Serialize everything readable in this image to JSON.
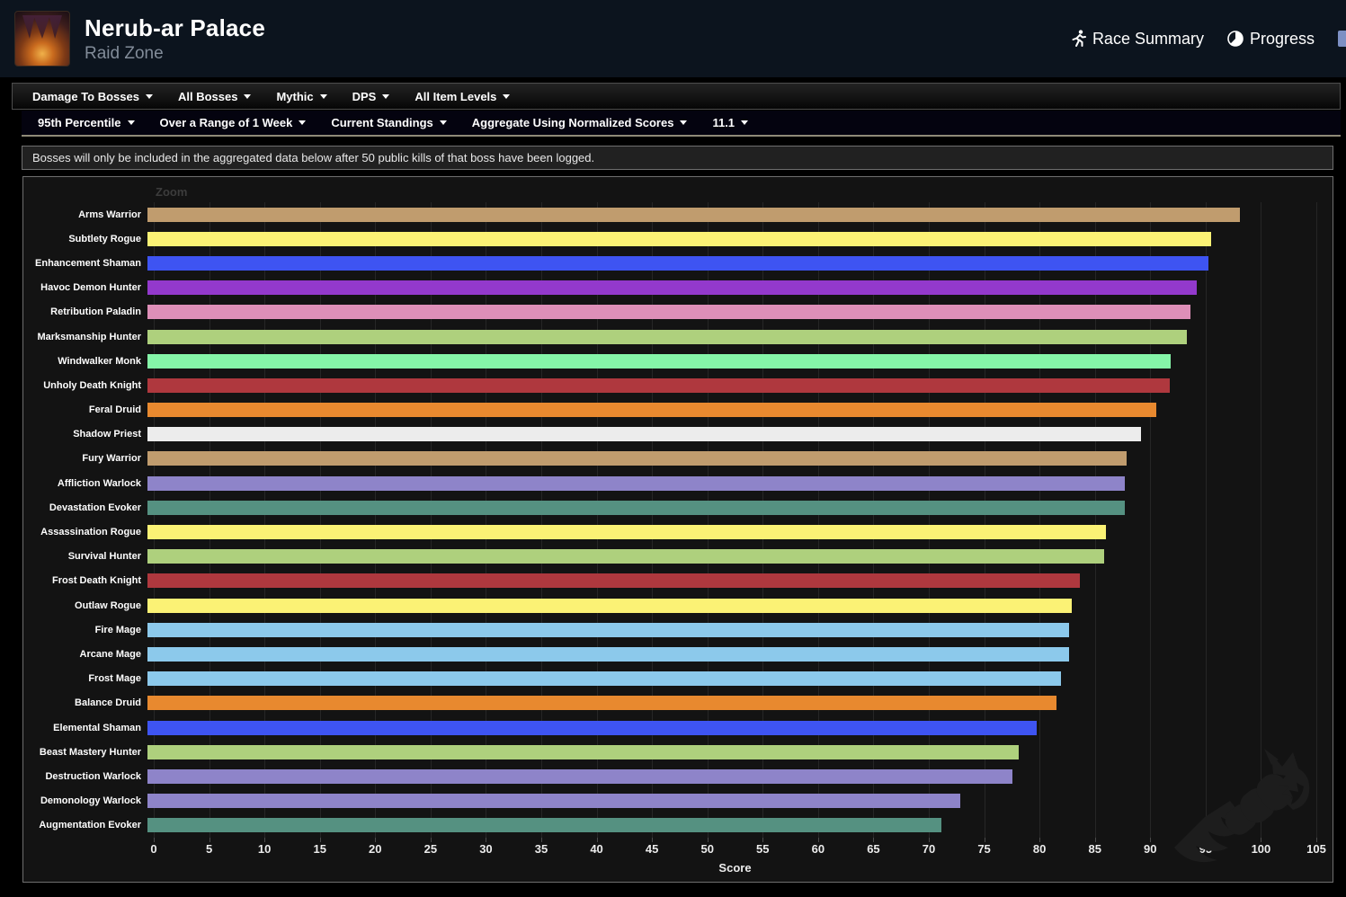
{
  "header": {
    "title": "Nerub-ar Palace",
    "subtitle": "Raid Zone",
    "links": [
      {
        "label": "Race Summary",
        "icon": "runner-icon"
      },
      {
        "label": "Progress",
        "icon": "pie-chart-icon"
      }
    ]
  },
  "filter_bar_primary": {
    "items": [
      "Damage To Bosses",
      "All Bosses",
      "Mythic",
      "DPS",
      "All Item Levels"
    ]
  },
  "filter_bar_secondary": {
    "items": [
      "95th Percentile",
      "Over a Range of 1 Week",
      "Current Standings",
      "Aggregate Using Normalized Scores",
      "11.1"
    ]
  },
  "notice": "Bosses will only be included in the aggregated data below after 50 public kills of that boss have been logged.",
  "chart_data": {
    "type": "bar",
    "orientation": "horizontal",
    "title": "",
    "zoom_label": "Zoom",
    "xlabel": "Score",
    "xlim": [
      0,
      105
    ],
    "xticks": [
      0,
      5,
      10,
      15,
      20,
      25,
      30,
      35,
      40,
      45,
      50,
      55,
      60,
      65,
      70,
      75,
      80,
      85,
      90,
      95,
      100,
      105
    ],
    "grid": true,
    "legend": false,
    "categories": [
      "Arms Warrior",
      "Subtlety Rogue",
      "Enhancement Shaman",
      "Havoc Demon Hunter",
      "Retribution Paladin",
      "Marksmanship Hunter",
      "Windwalker Monk",
      "Unholy Death Knight",
      "Feral Druid",
      "Shadow Priest",
      "Fury Warrior",
      "Affliction Warlock",
      "Devastation Evoker",
      "Assassination Rogue",
      "Survival Hunter",
      "Frost Death Knight",
      "Outlaw Rogue",
      "Fire Mage",
      "Arcane Mage",
      "Frost Mage",
      "Balance Druid",
      "Elemental Shaman",
      "Beast Mastery Hunter",
      "Destruction Warlock",
      "Demonology Warlock",
      "Augmentation Evoker"
    ],
    "values": [
      98.7,
      96.1,
      95.8,
      94.8,
      94.2,
      93.9,
      92.4,
      92.3,
      91.1,
      89.7,
      88.4,
      88.3,
      88.3,
      86.6,
      86.4,
      84.2,
      83.5,
      83.2,
      83.2,
      82.5,
      82.1,
      80.3,
      78.7,
      78.1,
      73.4,
      71.7
    ],
    "colors": [
      "#C09C6E",
      "#FBF275",
      "#3E54F2",
      "#9339CC",
      "#DE8FB8",
      "#AED07D",
      "#85F5A8",
      "#AF383E",
      "#E8892F",
      "#ECECEC",
      "#C09C6E",
      "#8E84C9",
      "#559181",
      "#FBF275",
      "#AED07D",
      "#AF383E",
      "#FBF275",
      "#8CC9EB",
      "#8CC9EB",
      "#8CC9EB",
      "#E8892F",
      "#3E54F2",
      "#AED07D",
      "#8E84C9",
      "#8E84C9",
      "#559181"
    ]
  }
}
